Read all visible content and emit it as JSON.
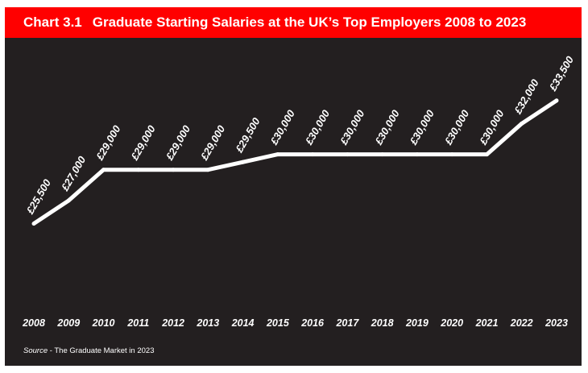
{
  "header": {
    "chart_number": "Chart 3.1",
    "title": "Graduate Starting Salaries at the UK’s Top Employers 2008 to 2023"
  },
  "source": {
    "label": "Source",
    "text": " - The Graduate Market in 2023"
  },
  "colors": {
    "header_background": "#ff0000",
    "chart_background": "#231f20",
    "line": "#ffffff",
    "text": "#ffffff"
  },
  "chart_data": {
    "type": "line",
    "title": "Graduate Starting Salaries at the UK’s Top Employers 2008 to 2023",
    "xlabel": "",
    "ylabel": "",
    "categories": [
      "2008",
      "2009",
      "2010",
      "2011",
      "2012",
      "2013",
      "2014",
      "2015",
      "2016",
      "2017",
      "2018",
      "2019",
      "2020",
      "2021",
      "2022",
      "2023"
    ],
    "series": [
      {
        "values": [
          25500,
          27000,
          29000,
          29000,
          29000,
          29000,
          29500,
          30000,
          30000,
          30000,
          30000,
          30000,
          30000,
          30000,
          32000,
          33500
        ]
      }
    ],
    "data_labels": [
      "£25,500",
      "£27,000",
      "£29,000",
      "£29,000",
      "£29,000",
      "£29,000",
      "£29,500",
      "£30,000",
      "£30,000",
      "£30,000",
      "£30,000",
      "£30,000",
      "£30,000",
      "£30,000",
      "£32,000",
      "£33,500"
    ],
    "ylim": [
      21500,
      36000
    ],
    "grid": false,
    "legend": "none"
  }
}
